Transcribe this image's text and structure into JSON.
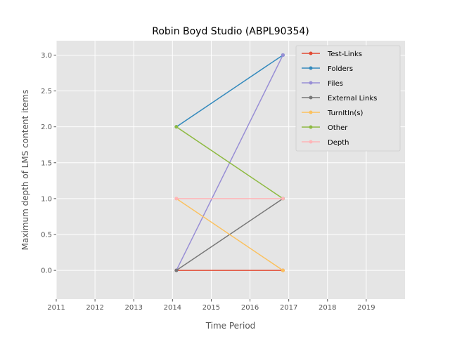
{
  "chart_data": {
    "type": "line",
    "title": "Robin Boyd Studio (ABPL90354)",
    "xlabel": "Time Period",
    "ylabel": "Maximum depth of LMS content items",
    "xlim": [
      2011,
      2020
    ],
    "ylim": [
      -0.4,
      3.2
    ],
    "xticks": [
      "2011",
      "2012",
      "2013",
      "2014",
      "2015",
      "2016",
      "2017",
      "2018",
      "2019"
    ],
    "yticks": [
      "0.0",
      "0.5",
      "1.0",
      "1.5",
      "2.0",
      "2.5",
      "3.0"
    ],
    "grid": true,
    "legend_position": "top-right",
    "x": [
      2014.1,
      2016.85
    ],
    "series": [
      {
        "name": "Test-Links",
        "color": "#E24A33",
        "values": [
          0,
          0
        ]
      },
      {
        "name": "Folders",
        "color": "#348ABD",
        "values": [
          2,
          3
        ]
      },
      {
        "name": "Files",
        "color": "#988ED5",
        "values": [
          0,
          3
        ]
      },
      {
        "name": "External Links",
        "color": "#777777",
        "values": [
          0,
          1
        ]
      },
      {
        "name": "TurnItIn(s)",
        "color": "#FBC15E",
        "values": [
          1,
          0
        ]
      },
      {
        "name": "Other",
        "color": "#8EBA42",
        "values": [
          2,
          1
        ]
      },
      {
        "name": "Depth",
        "color": "#FFB5B8",
        "values": [
          1,
          1
        ]
      }
    ]
  }
}
